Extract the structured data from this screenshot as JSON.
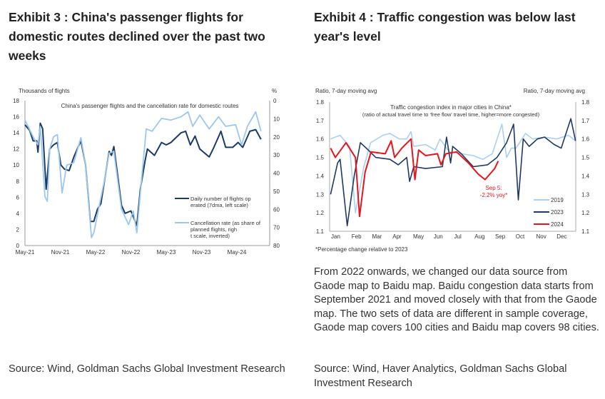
{
  "exhibit3": {
    "title": "Exhibit 3 : China's passenger flights for domestic routes declined over the past two weeks",
    "source": "Source: Wind, Goldman Sachs Global Investment Research"
  },
  "exhibit4": {
    "title": "Exhibit 4 : Traffic congestion was below last year's level",
    "note": "From 2022 onwards, we changed our data source from Gaode map to Baidu map. Baidu congestion data starts from September 2021 and moved closely with that from the Gaode map. The two sets of data are different in sample coverage, Gaode map covers 100 cities and Baidu map covers 98 cities.",
    "source": "Source: Wind, Haver Analytics, Goldman Sachs Global Investment Research"
  },
  "chart_data": [
    {
      "type": "line",
      "title": "China's passenger flights and the cancellation rate for domestic routes",
      "ylabel": "Thousands of flights",
      "y2label": "%",
      "ylim": [
        0,
        18
      ],
      "yticks": [
        0,
        2,
        4,
        6,
        8,
        10,
        12,
        14,
        16,
        18
      ],
      "y2lim": [
        80,
        0
      ],
      "y2_inverted": true,
      "y2ticks": [
        0,
        10,
        20,
        30,
        40,
        50,
        60,
        70,
        80
      ],
      "xtick_labels": [
        "May-21",
        "Nov-21",
        "May-22",
        "Nov-22",
        "May-23",
        "Nov-23",
        "May-24"
      ],
      "x_unit": "months since May-21",
      "legend_position": "bottom-right",
      "grid": false,
      "series": [
        {
          "name": "Daily number of flights operated (7dma, left scale)",
          "axis": "left",
          "color": "#1b3a66",
          "x": [
            0,
            0.8,
            1.4,
            2,
            2.2,
            2.6,
            3,
            3.6,
            4.2,
            4.85,
            5.5,
            6.1,
            6.7,
            7.5,
            8.3,
            9,
            9.5,
            10.3,
            11.1,
            11.7,
            12.3,
            12.9,
            13.5,
            14.3,
            14.7,
            15.1,
            15.7,
            16.4,
            17,
            18,
            19,
            19.6,
            20.4,
            20.8,
            22,
            23.2,
            24,
            24.8,
            26.5,
            27.3,
            28.1,
            28.9,
            29.7,
            31.3,
            32.1,
            33.3,
            34.1,
            35.3,
            36.2,
            37,
            38.2,
            39.2,
            40.1
          ],
          "y": [
            15,
            14.3,
            13,
            13,
            11.6,
            15.2,
            14.5,
            7,
            12,
            12.5,
            12.8,
            10,
            9.5,
            9.3,
            11,
            12.2,
            13,
            10,
            3,
            3,
            4.5,
            5.2,
            8,
            11.7,
            11.2,
            12.3,
            9,
            5,
            4,
            4.3,
            2.5,
            7,
            10.5,
            12,
            11.2,
            12.8,
            12.5,
            12.8,
            14,
            14.2,
            12.5,
            13.6,
            12,
            11,
            12.2,
            14.2,
            12.2,
            12.2,
            12.8,
            12.2,
            14.2,
            14.4,
            13.2
          ]
        },
        {
          "name": "Cancellation rate (as share of planned flights, right scale, inverted)",
          "axis": "right",
          "color": "#9cc7ec",
          "x": [
            0,
            1.4,
            2.2,
            2.6,
            3.4,
            3.8,
            4.2,
            4.85,
            5.5,
            6.3,
            7.1,
            8.3,
            9.5,
            10.3,
            11.3,
            11.7,
            12.5,
            13.5,
            14.3,
            15.1,
            16.4,
            17.6,
            18.4,
            19,
            19.8,
            20.6,
            21.6,
            23.2,
            24.8,
            26.5,
            27.7,
            28.5,
            29.7,
            31.3,
            32.9,
            34.1,
            35.8,
            36.8,
            37.8,
            39.2,
            40.1
          ],
          "y": [
            10.7,
            20,
            24.4,
            14.2,
            53,
            55.6,
            26.7,
            20,
            18.7,
            51,
            35.6,
            34.2,
            20.4,
            35.6,
            75.6,
            73,
            60,
            44,
            29,
            28,
            60,
            68.4,
            61,
            72.9,
            44,
            15.6,
            16.9,
            9.8,
            10.7,
            8.9,
            6.2,
            14.2,
            8,
            15.6,
            8.9,
            14.2,
            13.3,
            24.4,
            14.2,
            6.2,
            16.9
          ]
        }
      ]
    },
    {
      "type": "line",
      "title": "Traffic congestion index in major cities in China*",
      "subtitle": "(ratio of actual travel time to 'free flow' travel time, higher=more congested)",
      "ylabel": "Ratio, 7-day moving avg",
      "y2label": "Ratio, 7-day moving avg",
      "ylim": [
        1.1,
        1.8
      ],
      "yticks": [
        1.1,
        1.2,
        1.3,
        1.4,
        1.5,
        1.6,
        1.7,
        1.8
      ],
      "categories": [
        "Jan",
        "Feb",
        "Mar",
        "Apr",
        "May",
        "Jun",
        "Jul",
        "Aug",
        "Sep",
        "Oct",
        "Nov",
        "Dec"
      ],
      "x_unit": "month of year",
      "footnote": "*Percentage change relative to 2023",
      "annotation": "Sep 5: -2.2% yoy*",
      "legend_position": "bottom-right",
      "grid": false,
      "series": [
        {
          "name": "2019",
          "color": "#a9d0f0",
          "x": [
            0.05,
            0.51,
            0.97,
            1.26,
            1.67,
            2.0,
            2.6,
            2.94,
            3.4,
            3.76,
            3.97,
            4.1,
            4.68,
            5.15,
            5.38,
            5.84,
            6.42,
            7,
            7.47,
            7.93,
            8.4,
            8.63,
            8.86,
            9.09,
            9.55,
            9.9,
            10.48,
            11.06,
            11.64,
            11.99
          ],
          "y": [
            1.6,
            1.62,
            1.56,
            1.2,
            1.45,
            1.58,
            1.62,
            1.63,
            1.6,
            1.6,
            1.64,
            1.56,
            1.57,
            1.54,
            1.6,
            1.53,
            1.52,
            1.51,
            1.49,
            1.52,
            1.68,
            1.5,
            1.55,
            1.55,
            1.63,
            1.6,
            1.61,
            1.6,
            1.62,
            1.59
          ]
        },
        {
          "name": "2023",
          "color": "#1f3a60",
          "x": [
            0.05,
            0.39,
            0.51,
            0.86,
            1.2,
            1.5,
            1.79,
            2.25,
            2.94,
            3.35,
            3.76,
            3.9,
            4.1,
            4.68,
            5.5,
            5.7,
            5.9,
            6.0,
            6.42,
            7,
            7.7,
            8.16,
            8.63,
            8.97,
            9.2,
            9.44,
            9.73,
            10.13,
            10.48,
            10.95,
            11.29,
            11.76,
            11.99
          ],
          "y": [
            1.3,
            1.47,
            1.49,
            1.13,
            1.4,
            1.58,
            1.55,
            1.5,
            1.49,
            1.46,
            1.5,
            1.37,
            1.45,
            1.44,
            1.45,
            1.61,
            1.47,
            1.56,
            1.52,
            1.45,
            1.46,
            1.5,
            1.58,
            1.68,
            1.27,
            1.6,
            1.56,
            1.6,
            1.61,
            1.57,
            1.55,
            1.71,
            1.59
          ]
        },
        {
          "name": "2024",
          "color": "#e8141c",
          "x": [
            0.05,
            0.28,
            0.8,
            1.26,
            1.46,
            1.73,
            2.02,
            2.71,
            3.0,
            3.17,
            3.52,
            3.97,
            4.16,
            4.34,
            4.68,
            5.26,
            5.43,
            5.67,
            6.19,
            6.77,
            7.24,
            7.58,
            8.05,
            8.22
          ],
          "y": [
            1.55,
            1.5,
            1.58,
            1.5,
            1.18,
            1.42,
            1.53,
            1.52,
            1.59,
            1.5,
            1.55,
            1.6,
            1.38,
            1.54,
            1.51,
            1.52,
            1.46,
            1.52,
            1.53,
            1.47,
            1.41,
            1.38,
            1.44,
            1.48
          ]
        }
      ]
    }
  ]
}
